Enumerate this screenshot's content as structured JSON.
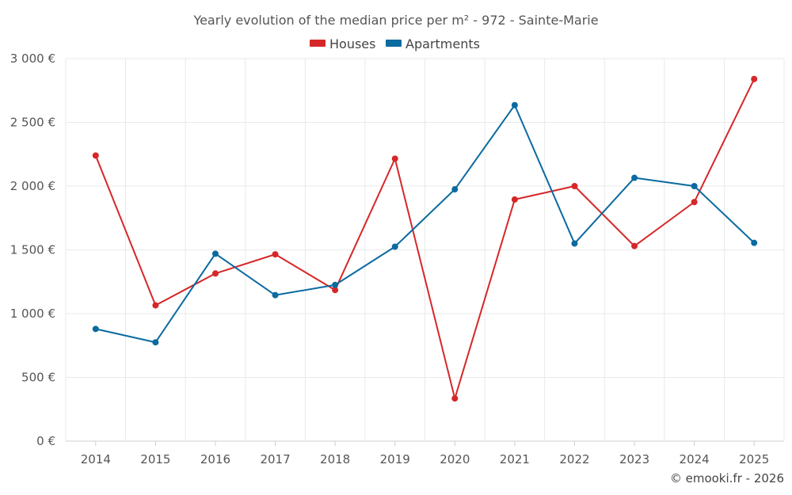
{
  "colors": {
    "houses": "#d62728",
    "apartments": "#0b6aa0"
  },
  "credit": "© emooki.fr - 2026",
  "chart_data": {
    "type": "line",
    "title": "Yearly evolution of the median price per m² - 972 - Sainte-Marie",
    "categories": [
      "2014",
      "2015",
      "2016",
      "2017",
      "2018",
      "2019",
      "2020",
      "2021",
      "2022",
      "2023",
      "2024",
      "2025"
    ],
    "series": [
      {
        "name": "Houses",
        "color": "#d62728",
        "values": [
          2240,
          1065,
          1315,
          1465,
          1185,
          2215,
          335,
          1895,
          2000,
          1530,
          1875,
          2840
        ]
      },
      {
        "name": "Apartments",
        "color": "#0b6aa0",
        "values": [
          880,
          775,
          1470,
          1145,
          1225,
          1525,
          1975,
          2635,
          1550,
          2065,
          2000,
          1555
        ]
      }
    ],
    "ylim": [
      0,
      3000
    ],
    "yticks": [
      0,
      500,
      1000,
      1500,
      2000,
      2500,
      3000
    ],
    "ytick_labels": [
      "0 €",
      "500 €",
      "1 000 €",
      "1 500 €",
      "2 000 €",
      "2 500 €",
      "3 000 €"
    ],
    "xlabel": "",
    "ylabel": "",
    "grid": true,
    "legend_position": "top-center"
  }
}
